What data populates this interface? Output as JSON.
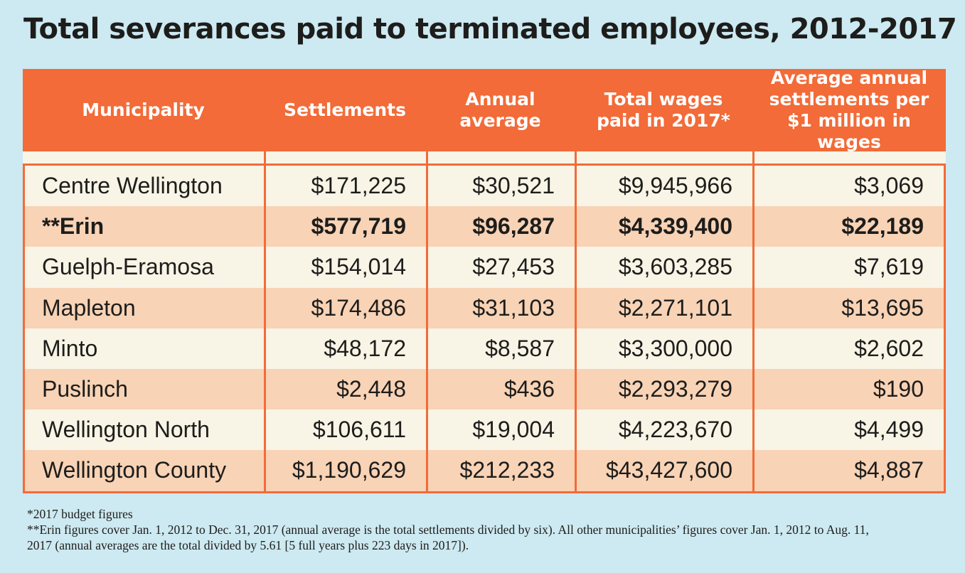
{
  "colors": {
    "background": "#cde9f1",
    "header": "#f26b38",
    "row_light": "#f8f4e6",
    "row_dark": "#f8d3b6"
  },
  "chart_data": {
    "type": "table",
    "title": "Total severances paid to terminated employees, 2012-2017",
    "columns": [
      "Municipality",
      "Settlements",
      "Annual\naverage",
      "Total wages\npaid in 2017*",
      "Average annual\nsettlements per\n$1 million in wages"
    ],
    "rows": [
      {
        "cells": [
          "Centre Wellington",
          "$171,225",
          "$30,521",
          "$9,945,966",
          "$3,069"
        ],
        "bold": false
      },
      {
        "cells": [
          "**Erin",
          "$577,719",
          "$96,287",
          "$4,339,400",
          "$22,189"
        ],
        "bold": true
      },
      {
        "cells": [
          "Guelph-Eramosa",
          "$154,014",
          "$27,453",
          "$3,603,285",
          "$7,619"
        ],
        "bold": false
      },
      {
        "cells": [
          "Mapleton",
          "$174,486",
          "$31,103",
          "$2,271,101",
          "$13,695"
        ],
        "bold": false
      },
      {
        "cells": [
          "Minto",
          "$48,172",
          "$8,587",
          "$3,300,000",
          "$2,602"
        ],
        "bold": false
      },
      {
        "cells": [
          "Puslinch",
          "$2,448",
          "$436",
          "$2,293,279",
          "$190"
        ],
        "bold": false
      },
      {
        "cells": [
          "Wellington North",
          "$106,611",
          "$19,004",
          "$4,223,670",
          "$4,499"
        ],
        "bold": false
      },
      {
        "cells": [
          "Wellington County",
          "$1,190,629",
          "$212,233",
          "$43,427,600",
          "$4,887"
        ],
        "bold": false
      }
    ],
    "notes": [
      "*2017 budget figures",
      "**Erin figures cover Jan. 1, 2012 to Dec. 31, 2017 (annual average is the total settlements divided by six). All other municipalities’ figures cover Jan. 1, 2012 to Aug. 11, 2017 (annual averages are the total divided by 5.61 [5 full years plus 223 days in 2017])."
    ]
  }
}
